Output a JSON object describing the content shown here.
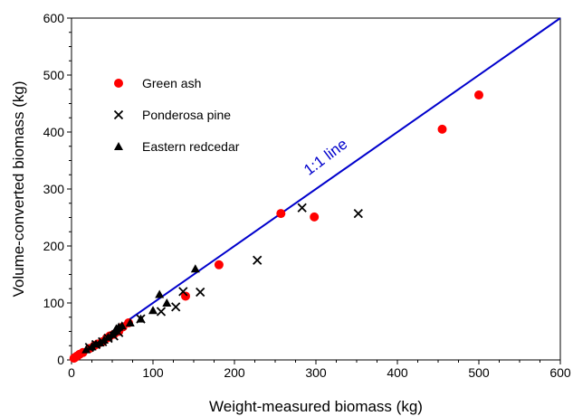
{
  "chart_data": {
    "type": "scatter",
    "title": "",
    "xlabel": "Weight-measured biomass (kg)",
    "ylabel": "Volume-converted biomass (kg)",
    "xlim": [
      0,
      600
    ],
    "ylim": [
      0,
      600
    ],
    "x_ticks": [
      0,
      100,
      200,
      300,
      400,
      500,
      600
    ],
    "y_ticks": [
      0,
      100,
      200,
      300,
      400,
      500,
      600
    ],
    "grid": false,
    "legend_position": "top-left",
    "series": [
      {
        "name": "Green ash",
        "marker": "circle",
        "color": "#ff0000",
        "points": [
          [
            3,
            3
          ],
          [
            5,
            5
          ],
          [
            7,
            7
          ],
          [
            10,
            10
          ],
          [
            14,
            13
          ],
          [
            22,
            20
          ],
          [
            28,
            25
          ],
          [
            32,
            28
          ],
          [
            38,
            32
          ],
          [
            43,
            38
          ],
          [
            47,
            42
          ],
          [
            52,
            45
          ],
          [
            58,
            50
          ],
          [
            63,
            58
          ],
          [
            70,
            65
          ],
          [
            140,
            112
          ],
          [
            181,
            167
          ],
          [
            257,
            257
          ],
          [
            298,
            251
          ],
          [
            455,
            405
          ],
          [
            500,
            465
          ]
        ]
      },
      {
        "name": "Ponderosa pine",
        "marker": "x",
        "color": "#000000",
        "points": [
          [
            22,
            22
          ],
          [
            30,
            27
          ],
          [
            38,
            32
          ],
          [
            45,
            38
          ],
          [
            52,
            42
          ],
          [
            58,
            48
          ],
          [
            85,
            72
          ],
          [
            110,
            85
          ],
          [
            128,
            93
          ],
          [
            137,
            120
          ],
          [
            158,
            119
          ],
          [
            228,
            175
          ],
          [
            283,
            267
          ],
          [
            352,
            257
          ]
        ]
      },
      {
        "name": "Eastern redcedar",
        "marker": "triangle",
        "color": "#000000",
        "points": [
          [
            18,
            18
          ],
          [
            25,
            23
          ],
          [
            30,
            28
          ],
          [
            35,
            30
          ],
          [
            40,
            35
          ],
          [
            45,
            40
          ],
          [
            50,
            45
          ],
          [
            53,
            50
          ],
          [
            55,
            55
          ],
          [
            58,
            58
          ],
          [
            62,
            60
          ],
          [
            72,
            65
          ],
          [
            85,
            72
          ],
          [
            100,
            87
          ],
          [
            108,
            115
          ],
          [
            117,
            100
          ],
          [
            152,
            160
          ]
        ]
      }
    ],
    "reference_line": {
      "label": "1:1 line",
      "color": "#0000cc",
      "from": [
        0,
        0
      ],
      "to": [
        600,
        600
      ]
    }
  }
}
